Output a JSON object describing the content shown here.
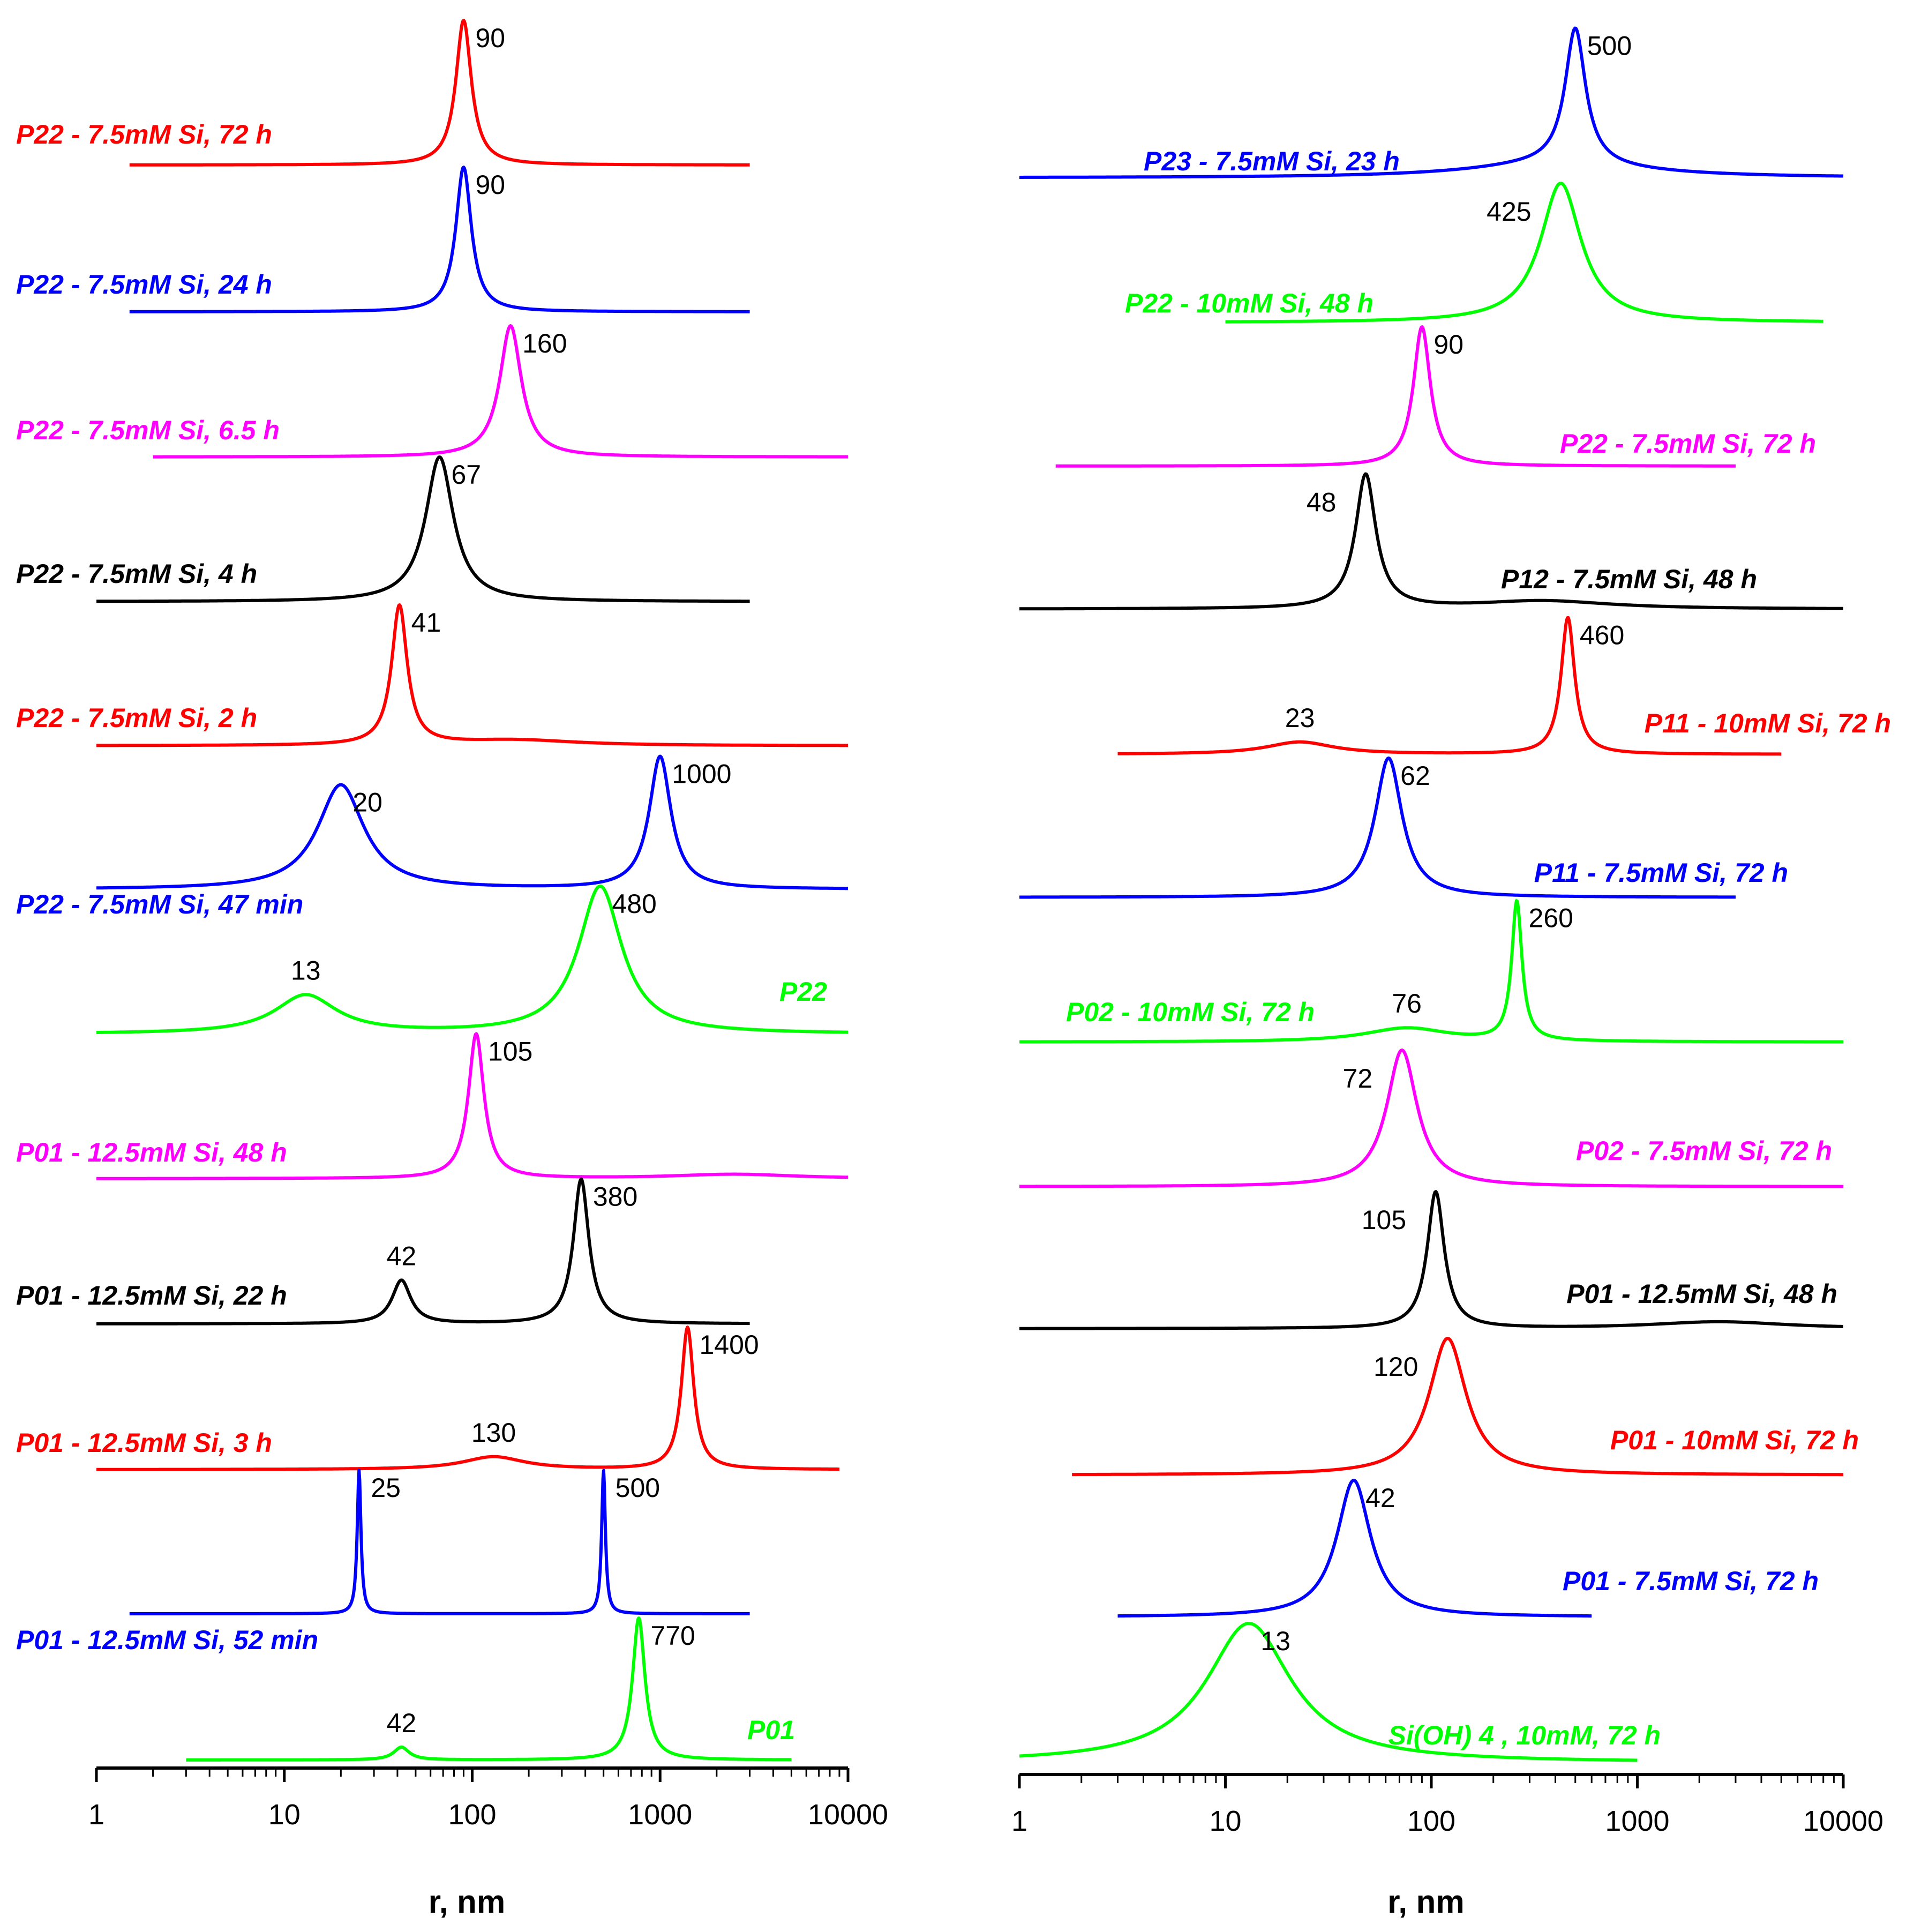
{
  "colors": {
    "red": "#ff0000",
    "blue": "#0000ff",
    "magenta": "#ff00ff",
    "black": "#000000",
    "green": "#00ff00"
  },
  "chart_data": [
    {
      "type": "line",
      "panel": "left",
      "xlabel": "r, nm",
      "xscale": "log",
      "xlim": [
        1,
        10000
      ],
      "x_ticks": [
        "1",
        "10",
        "100",
        "1000",
        "10000"
      ],
      "series": [
        {
          "name": "P22 - 7.5mM Si, 72 h",
          "color": "red",
          "x_range": [
            1.5,
            3000
          ],
          "peaks": [
            {
              "x": 90,
              "label": "90",
              "height": 1.0,
              "width": 0.05
            }
          ]
        },
        {
          "name": "P22 - 7.5mM Si, 24 h",
          "color": "blue",
          "x_range": [
            1.5,
            3000
          ],
          "peaks": [
            {
              "x": 90,
              "label": "90",
              "height": 1.0,
              "width": 0.05
            }
          ]
        },
        {
          "name": "P22 - 7.5mM Si, 6.5 h",
          "color": "magenta",
          "x_range": [
            2,
            10000
          ],
          "peaks": [
            {
              "x": 160,
              "label": "160",
              "height": 1.0,
              "width": 0.07
            }
          ]
        },
        {
          "name": "P22 - 7.5mM Si, 4 h",
          "color": "black",
          "x_range": [
            1,
            3000
          ],
          "peaks": [
            {
              "x": 67,
              "label": "67",
              "height": 1.0,
              "width": 0.09
            }
          ]
        },
        {
          "name": "P22 - 7.5mM Si, 2 h",
          "color": "red",
          "x_range": [
            1,
            10000
          ],
          "peaks": [
            {
              "x": 41,
              "label": "41",
              "height": 1.0,
              "width": 0.05
            },
            {
              "x": 170,
              "label": "",
              "height": 0.04,
              "width": 0.4
            }
          ]
        },
        {
          "name": "P22 - 7.5mM Si, 47 min",
          "color": "blue",
          "x_range": [
            1,
            10000
          ],
          "peaks": [
            {
              "x": 20,
              "label": "20",
              "height": 0.75,
              "width": 0.15
            },
            {
              "x": 1000,
              "label": "1000",
              "height": 0.95,
              "width": 0.07
            }
          ]
        },
        {
          "name": "P22",
          "color": "green",
          "x_range": [
            1,
            10000
          ],
          "peaks": [
            {
              "x": 13,
              "label": "13",
              "height": 0.26,
              "width": 0.2
            },
            {
              "x": 480,
              "label": "480",
              "height": 1.0,
              "width": 0.14
            }
          ]
        },
        {
          "name": "P01 - 12.5mM Si, 48 h",
          "color": "magenta",
          "x_range": [
            1,
            10000
          ],
          "peaks": [
            {
              "x": 105,
              "label": "105",
              "height": 1.0,
              "width": 0.05
            },
            {
              "x": 2500,
              "label": "",
              "height": 0.03,
              "width": 0.4
            }
          ]
        },
        {
          "name": "P01 - 12.5mM Si, 22 h",
          "color": "black",
          "x_range": [
            1,
            3000
          ],
          "peaks": [
            {
              "x": 42,
              "label": "42",
              "height": 0.3,
              "width": 0.06
            },
            {
              "x": 380,
              "label": "380",
              "height": 1.0,
              "width": 0.05
            }
          ]
        },
        {
          "name": "P01 - 12.5mM Si, 3 h",
          "color": "red",
          "x_range": [
            1,
            9000
          ],
          "peaks": [
            {
              "x": 130,
              "label": "130",
              "height": 0.09,
              "width": 0.2
            },
            {
              "x": 1400,
              "label": "1400",
              "height": 1.0,
              "width": 0.04
            }
          ]
        },
        {
          "name": "P01 - 12.5mM Si, 52 min",
          "color": "blue",
          "x_range": [
            1.5,
            3000
          ],
          "peaks": [
            {
              "x": 25,
              "label": "25",
              "height": 1.0,
              "width": 0.012
            },
            {
              "x": 500,
              "label": "500",
              "height": 1.0,
              "width": 0.012
            }
          ]
        },
        {
          "name": "P01",
          "color": "green",
          "x_range": [
            3,
            5000
          ],
          "peaks": [
            {
              "x": 42,
              "label": "42",
              "height": 0.09,
              "width": 0.05
            },
            {
              "x": 770,
              "label": "770",
              "height": 1.0,
              "width": 0.04
            }
          ]
        }
      ]
    },
    {
      "type": "line",
      "panel": "right",
      "xlabel": "r, nm",
      "xscale": "log",
      "xlim": [
        1,
        10000
      ],
      "x_ticks": [
        "1",
        "10",
        "100",
        "1000",
        "10000"
      ],
      "series": [
        {
          "name": "P23 - 7.5mM Si, 23 h",
          "color": "blue",
          "x_range": [
            1,
            10000
          ],
          "peaks": [
            {
              "x": 500,
              "label": "500",
              "height": 1.0,
              "width": 0.06
            },
            {
              "x": 400,
              "label": "",
              "height": 0.1,
              "width": 0.5
            }
          ]
        },
        {
          "name": "P22 - 10mM Si, 48 h",
          "color": "green",
          "x_range": [
            10,
            8000
          ],
          "peaks": [
            {
              "x": 425,
              "label": "425",
              "height": 1.0,
              "width": 0.12
            }
          ]
        },
        {
          "name": "P22 - 7.5mM Si, 72 h",
          "color": "magenta",
          "x_range": [
            1.5,
            3000
          ],
          "peaks": [
            {
              "x": 90,
              "label": "90",
              "height": 1.0,
              "width": 0.05
            }
          ]
        },
        {
          "name": "P12 - 7.5mM Si, 48 h",
          "color": "black",
          "x_range": [
            1,
            10000
          ],
          "peaks": [
            {
              "x": 48,
              "label": "48",
              "height": 1.0,
              "width": 0.06
            },
            {
              "x": 350,
              "label": "",
              "height": 0.06,
              "width": 0.4
            }
          ]
        },
        {
          "name": "P11 - 10mM Si, 72 h",
          "color": "red",
          "x_range": [
            3,
            5000
          ],
          "peaks": [
            {
              "x": 23,
              "label": "23",
              "height": 0.09,
              "width": 0.2
            },
            {
              "x": 460,
              "label": "460",
              "height": 1.0,
              "width": 0.04
            }
          ]
        },
        {
          "name": "P11 - 7.5mM Si, 72 h",
          "color": "blue",
          "x_range": [
            1,
            3000
          ],
          "peaks": [
            {
              "x": 62,
              "label": "62",
              "height": 1.0,
              "width": 0.08
            }
          ]
        },
        {
          "name": "P02 - 10mM Si, 72 h",
          "color": "green",
          "x_range": [
            1,
            10000
          ],
          "peaks": [
            {
              "x": 76,
              "label": "76",
              "height": 0.1,
              "width": 0.25
            },
            {
              "x": 260,
              "label": "260",
              "height": 1.0,
              "width": 0.03
            }
          ]
        },
        {
          "name": "P02 - 7.5mM Si, 72 h",
          "color": "magenta",
          "x_range": [
            1,
            10000
          ],
          "peaks": [
            {
              "x": 72,
              "label": "72",
              "height": 1.0,
              "width": 0.09
            }
          ]
        },
        {
          "name": "P01 - 12.5mM Si, 48 h",
          "color": "black",
          "x_range": [
            1,
            10000
          ],
          "peaks": [
            {
              "x": 105,
              "label": "105",
              "height": 1.0,
              "width": 0.05
            },
            {
              "x": 2500,
              "label": "",
              "height": 0.05,
              "width": 0.4
            }
          ]
        },
        {
          "name": "P01 - 10mM Si, 72 h",
          "color": "red",
          "x_range": [
            1.8,
            10000
          ],
          "peaks": [
            {
              "x": 120,
              "label": "120",
              "height": 1.0,
              "width": 0.11
            }
          ]
        },
        {
          "name": "P01 - 7.5mM Si, 72 h",
          "color": "blue",
          "x_range": [
            3,
            600
          ],
          "peaks": [
            {
              "x": 42,
              "label": "42",
              "height": 1.0,
              "width": 0.1
            }
          ]
        },
        {
          "name": "Si(OH) 4 , 10mM, 72 h",
          "color": "green",
          "x_range": [
            1,
            1000
          ],
          "peaks": [
            {
              "x": 13,
              "label": "13",
              "height": 1.0,
              "width": 0.25
            }
          ]
        }
      ]
    }
  ]
}
